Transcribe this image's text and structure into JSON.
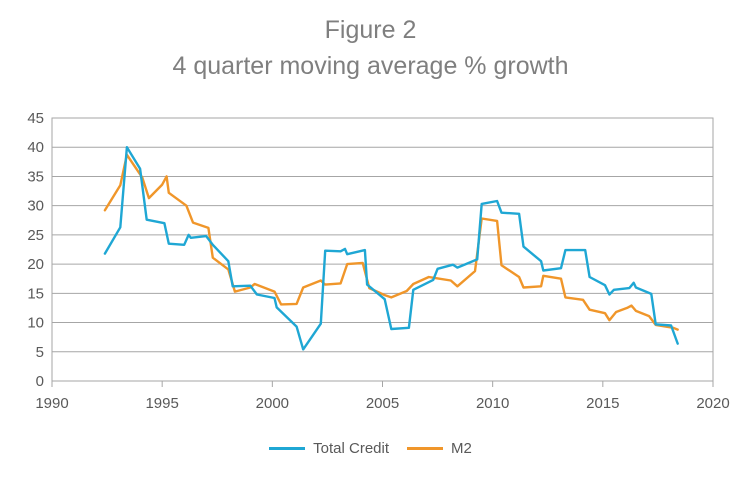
{
  "chart_data": {
    "type": "line",
    "title": "Figure 2",
    "subtitle": "4 quarter moving average % growth",
    "xlim": [
      1990,
      2020
    ],
    "ylim": [
      0,
      45
    ],
    "xticks": [
      "1990",
      "1995",
      "2000",
      "2005",
      "2010",
      "2015",
      "2020"
    ],
    "yticks": [
      "0",
      "5",
      "10",
      "15",
      "20",
      "25",
      "30",
      "35",
      "40",
      "45"
    ],
    "grid": "horizontal",
    "legend_position": "bottom",
    "series": [
      {
        "name": "Total Credit",
        "color": "#1fa7d4",
        "points": [
          [
            1992.4,
            21.8
          ],
          [
            1993.1,
            26.3
          ],
          [
            1993.4,
            40.0
          ],
          [
            1994.0,
            36.3
          ],
          [
            1994.3,
            27.6
          ],
          [
            1995.1,
            27.0
          ],
          [
            1995.3,
            23.5
          ],
          [
            1996.0,
            23.3
          ],
          [
            1996.2,
            25.0
          ],
          [
            1996.3,
            24.5
          ],
          [
            1997.0,
            24.8
          ],
          [
            1997.3,
            23.3
          ],
          [
            1998.0,
            20.5
          ],
          [
            1998.2,
            16.2
          ],
          [
            1999.0,
            16.3
          ],
          [
            1999.3,
            14.8
          ],
          [
            2000.1,
            14.2
          ],
          [
            2000.2,
            12.6
          ],
          [
            2001.1,
            9.3
          ],
          [
            2001.4,
            5.4
          ],
          [
            2002.2,
            9.8
          ],
          [
            2002.4,
            22.3
          ],
          [
            2003.1,
            22.2
          ],
          [
            2003.3,
            22.6
          ],
          [
            2003.4,
            21.7
          ],
          [
            2004.2,
            22.4
          ],
          [
            2004.3,
            16.5
          ],
          [
            2005.1,
            14.0
          ],
          [
            2005.4,
            8.9
          ],
          [
            2006.2,
            9.1
          ],
          [
            2006.4,
            15.6
          ],
          [
            2007.3,
            17.3
          ],
          [
            2007.5,
            19.2
          ],
          [
            2008.2,
            19.9
          ],
          [
            2008.4,
            19.4
          ],
          [
            2009.3,
            20.8
          ],
          [
            2009.5,
            30.3
          ],
          [
            2010.2,
            30.8
          ],
          [
            2010.4,
            28.8
          ],
          [
            2011.2,
            28.6
          ],
          [
            2011.4,
            23.0
          ],
          [
            2012.2,
            20.5
          ],
          [
            2012.3,
            18.9
          ],
          [
            2013.1,
            19.3
          ],
          [
            2013.3,
            22.4
          ],
          [
            2014.2,
            22.4
          ],
          [
            2014.4,
            17.8
          ],
          [
            2015.1,
            16.4
          ],
          [
            2015.3,
            14.8
          ],
          [
            2015.5,
            15.6
          ],
          [
            2016.2,
            15.9
          ],
          [
            2016.4,
            16.8
          ],
          [
            2016.5,
            16.0
          ],
          [
            2017.2,
            14.9
          ],
          [
            2017.4,
            9.7
          ],
          [
            2018.1,
            9.5
          ],
          [
            2018.4,
            6.4
          ]
        ]
      },
      {
        "name": "M2",
        "color": "#f0962a",
        "points": [
          [
            1992.4,
            29.2
          ],
          [
            1993.1,
            33.5
          ],
          [
            1993.4,
            38.7
          ],
          [
            1994.1,
            34.8
          ],
          [
            1994.4,
            31.3
          ],
          [
            1995.0,
            33.6
          ],
          [
            1995.2,
            35.0
          ],
          [
            1995.3,
            32.2
          ],
          [
            1996.1,
            30.0
          ],
          [
            1996.4,
            27.1
          ],
          [
            1997.1,
            26.2
          ],
          [
            1997.3,
            21.1
          ],
          [
            1998.0,
            19.1
          ],
          [
            1998.3,
            15.3
          ],
          [
            1999.0,
            16.0
          ],
          [
            1999.2,
            16.6
          ],
          [
            2000.1,
            15.3
          ],
          [
            2000.4,
            13.1
          ],
          [
            2001.1,
            13.2
          ],
          [
            2001.4,
            16.0
          ],
          [
            2002.2,
            17.2
          ],
          [
            2002.4,
            16.5
          ],
          [
            2003.1,
            16.7
          ],
          [
            2003.4,
            20.0
          ],
          [
            2004.1,
            20.2
          ],
          [
            2004.4,
            15.9
          ],
          [
            2005.1,
            14.7
          ],
          [
            2005.4,
            14.3
          ],
          [
            2006.1,
            15.4
          ],
          [
            2006.4,
            16.6
          ],
          [
            2007.1,
            17.8
          ],
          [
            2007.4,
            17.6
          ],
          [
            2008.1,
            17.2
          ],
          [
            2008.4,
            16.2
          ],
          [
            2009.2,
            18.8
          ],
          [
            2009.5,
            27.8
          ],
          [
            2010.2,
            27.4
          ],
          [
            2010.4,
            19.8
          ],
          [
            2011.2,
            17.8
          ],
          [
            2011.4,
            16.0
          ],
          [
            2012.2,
            16.2
          ],
          [
            2012.3,
            18.0
          ],
          [
            2013.1,
            17.5
          ],
          [
            2013.3,
            14.3
          ],
          [
            2014.1,
            13.9
          ],
          [
            2014.4,
            12.2
          ],
          [
            2015.1,
            11.6
          ],
          [
            2015.3,
            10.4
          ],
          [
            2015.6,
            11.8
          ],
          [
            2016.1,
            12.5
          ],
          [
            2016.3,
            12.9
          ],
          [
            2016.5,
            12.0
          ],
          [
            2017.1,
            11.1
          ],
          [
            2017.4,
            9.6
          ],
          [
            2018.2,
            9.1
          ],
          [
            2018.4,
            8.8
          ]
        ]
      }
    ]
  }
}
